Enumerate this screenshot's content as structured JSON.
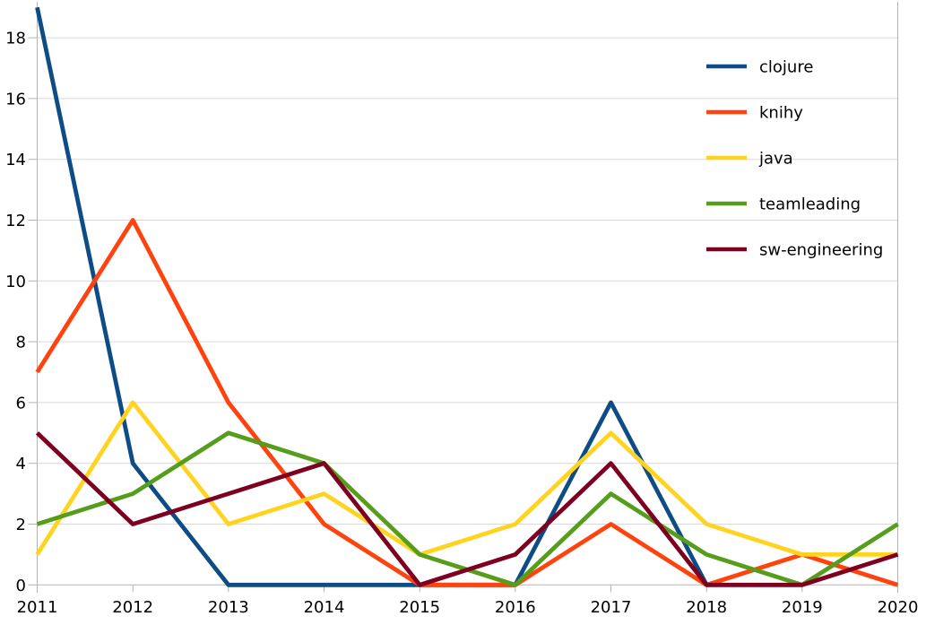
{
  "background": "#ffffff",
  "text_color": "#000000",
  "grid_color": "#d9d9d9",
  "axis_color": "#b3b3b3",
  "chart_data": {
    "type": "line",
    "title": "",
    "xlabel": "",
    "ylabel": "",
    "categories": [
      "2011",
      "2012",
      "2013",
      "2014",
      "2015",
      "2016",
      "2017",
      "2018",
      "2019",
      "2020"
    ],
    "series": [
      {
        "name": "clojure",
        "color": "#0d4c85",
        "values": [
          19,
          4,
          0,
          0,
          0,
          0,
          6,
          0,
          null,
          null
        ]
      },
      {
        "name": "knihy",
        "color": "#ff420e",
        "values": [
          7,
          12,
          6,
          2,
          0,
          0,
          2,
          0,
          1,
          0
        ]
      },
      {
        "name": "java",
        "color": "#ffd320",
        "values": [
          1,
          6,
          2,
          3,
          1,
          2,
          5,
          2,
          1,
          1
        ]
      },
      {
        "name": "teamleading",
        "color": "#579d1c",
        "values": [
          2,
          3,
          5,
          4,
          1,
          0,
          3,
          1,
          0,
          2
        ]
      },
      {
        "name": "sw-engineering",
        "color": "#7e0021",
        "values": [
          5,
          2,
          3,
          4,
          0,
          1,
          4,
          0,
          0,
          1
        ]
      }
    ],
    "y_ticks": [
      0,
      2,
      4,
      6,
      8,
      10,
      12,
      14,
      16,
      18
    ],
    "ylim": [
      0,
      19.2
    ],
    "grid": "horizontal",
    "legend_position": "top-right",
    "legend_entries": [
      "clojure",
      "knihy",
      "java",
      "teamleading",
      "sw-engineering"
    ]
  }
}
